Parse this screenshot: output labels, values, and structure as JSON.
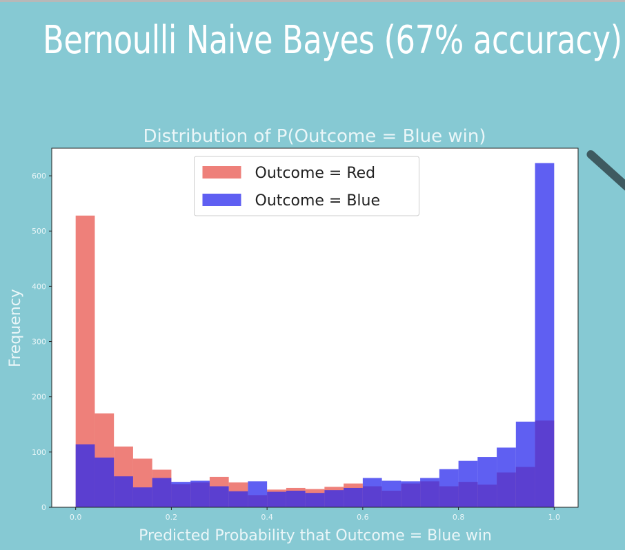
{
  "slide": {
    "title": "Bernoulli Naive Bayes (67% accuracy)"
  },
  "chart_data": {
    "type": "bar",
    "title": "Distribution of P(Outcome = Blue win)",
    "xlabel": "Predicted Probability that Outcome = Blue win",
    "ylabel": "Frequency",
    "xlim": [
      -0.05,
      1.05
    ],
    "ylim": [
      0,
      650
    ],
    "xticks": [
      "0.0",
      "0.2",
      "0.4",
      "0.6",
      "0.8",
      "1.0"
    ],
    "yticks": [
      "0",
      "100",
      "200",
      "300",
      "400",
      "500",
      "600"
    ],
    "bin_edges": [
      0.0,
      0.04,
      0.08,
      0.12,
      0.16,
      0.2,
      0.24,
      0.28,
      0.32,
      0.36,
      0.4,
      0.44,
      0.48,
      0.52,
      0.56,
      0.6,
      0.64,
      0.68,
      0.72,
      0.76,
      0.8,
      0.84,
      0.88,
      0.92,
      0.96,
      1.0
    ],
    "legend_position": "upper center",
    "series": [
      {
        "name": "Outcome = Red",
        "color": "#e8554e",
        "values": [
          528,
          170,
          110,
          88,
          68,
          42,
          45,
          55,
          45,
          22,
          32,
          35,
          33,
          37,
          43,
          38,
          30,
          43,
          47,
          38,
          46,
          41,
          63,
          73,
          157
        ]
      },
      {
        "name": "Outcome = Blue",
        "color": "#2a2aee",
        "values": [
          114,
          90,
          56,
          36,
          53,
          46,
          48,
          38,
          29,
          47,
          28,
          30,
          26,
          31,
          35,
          53,
          48,
          47,
          53,
          69,
          84,
          91,
          108,
          155,
          623
        ]
      }
    ]
  }
}
